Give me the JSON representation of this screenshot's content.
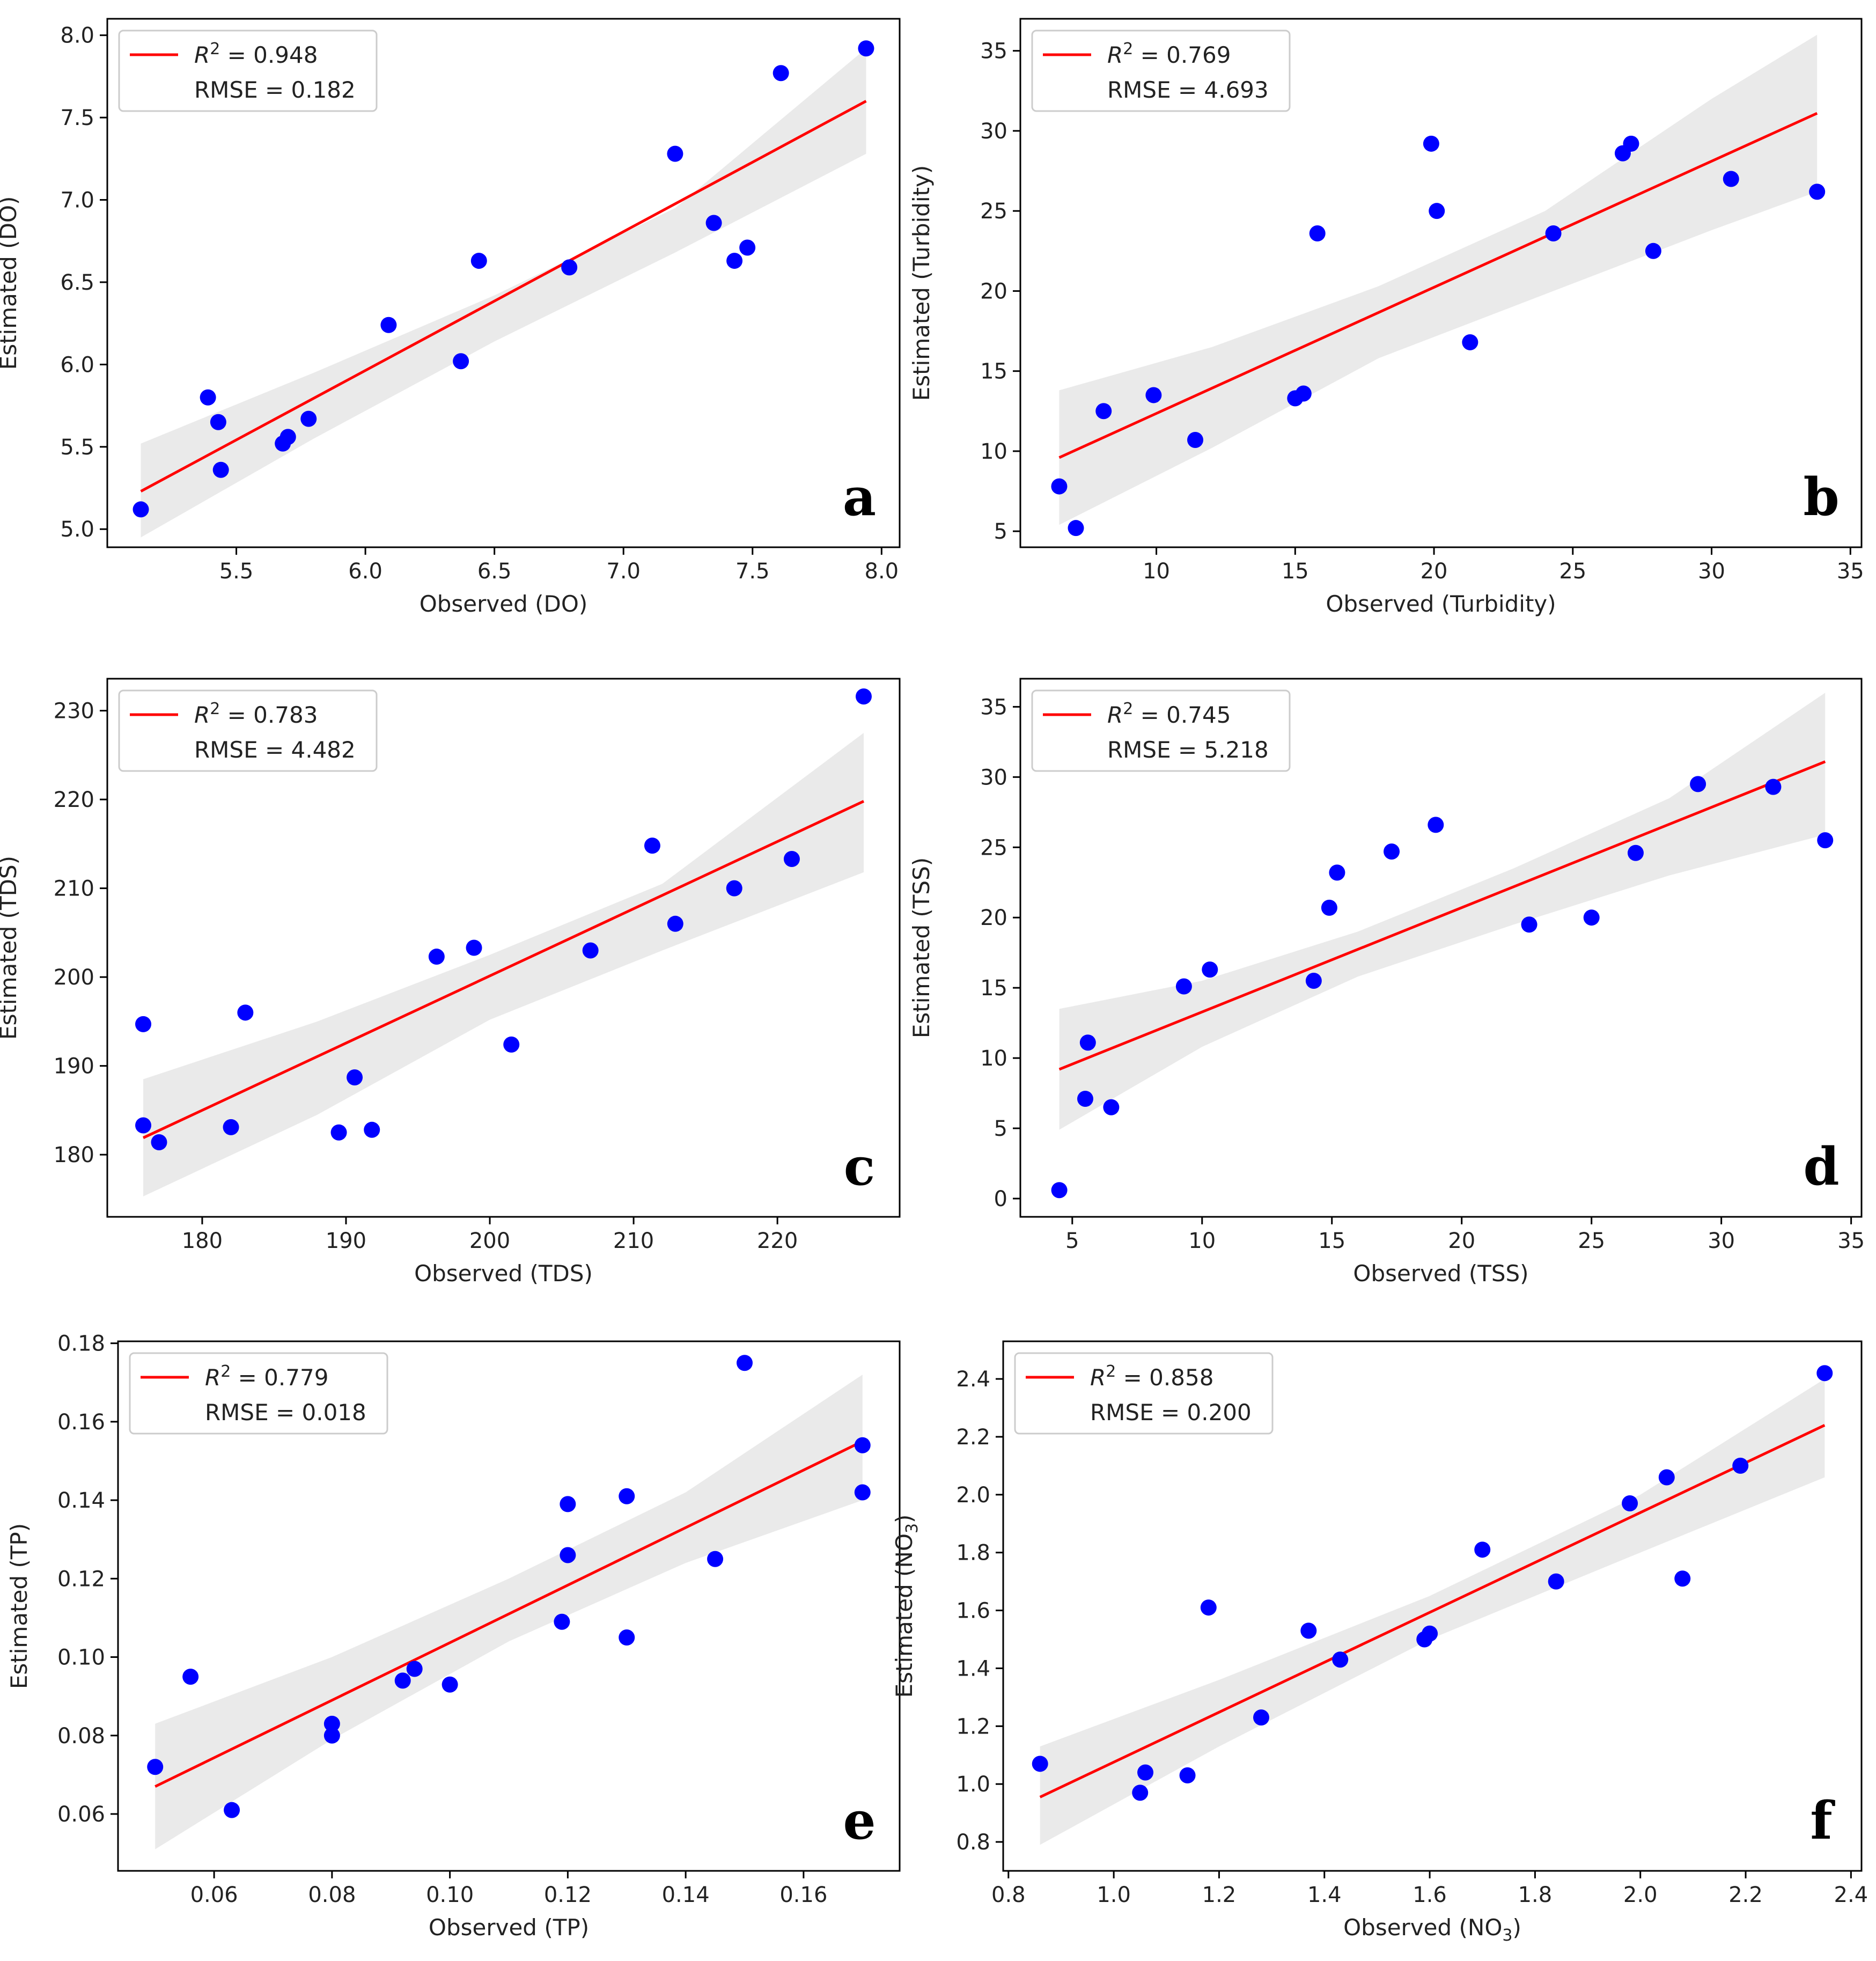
{
  "figure": {
    "style": {
      "point_color": "#0000ff",
      "line_color": "#ff0000",
      "band_color": "#e8e8e8",
      "legend_border_color": "#cccccc"
    }
  },
  "chart_data": [
    {
      "type": "scatter",
      "panel_letter": "a",
      "xlabel": "Observed (DO)",
      "ylabel": "Estimated (DO)",
      "legend": {
        "r2_label": "R",
        "r2_sup": "2",
        "r2_value": " = 0.948",
        "rmse_label": "RMSE = 0.182",
        "position": "upper-left"
      },
      "xlim": [
        5.0,
        8.07
      ],
      "ylim": [
        4.89,
        8.1
      ],
      "xticks": [
        5.5,
        6.0,
        6.5,
        7.0,
        7.5,
        8.0
      ],
      "xtick_labels": [
        "5.5",
        "6.0",
        "6.5",
        "7.0",
        "7.5",
        "8.0"
      ],
      "yticks": [
        5.0,
        5.5,
        6.0,
        6.5,
        7.0,
        7.5,
        8.0
      ],
      "ytick_labels": [
        "5.0",
        "5.5",
        "6.0",
        "6.5",
        "7.0",
        "7.5",
        "8.0"
      ],
      "points": [
        [
          5.13,
          5.12
        ],
        [
          5.39,
          5.8
        ],
        [
          5.43,
          5.65
        ],
        [
          5.44,
          5.36
        ],
        [
          5.68,
          5.52
        ],
        [
          5.7,
          5.56
        ],
        [
          5.78,
          5.67
        ],
        [
          6.09,
          6.24
        ],
        [
          6.37,
          6.02
        ],
        [
          6.44,
          6.63
        ],
        [
          6.79,
          6.59
        ],
        [
          7.2,
          7.28
        ],
        [
          7.35,
          6.86
        ],
        [
          7.43,
          6.63
        ],
        [
          7.48,
          6.71
        ],
        [
          7.61,
          7.77
        ],
        [
          7.94,
          7.92
        ]
      ],
      "fit_line": [
        [
          5.13,
          5.23
        ],
        [
          7.94,
          7.6
        ]
      ],
      "band": {
        "x": [
          5.13,
          5.8,
          6.5,
          7.2,
          7.94
        ],
        "upper": [
          5.52,
          5.95,
          6.42,
          6.95,
          7.92
        ],
        "lower": [
          4.95,
          5.55,
          6.14,
          6.68,
          7.28
        ]
      }
    },
    {
      "type": "scatter",
      "panel_letter": "b",
      "xlabel": "Observed (Turbidity)",
      "ylabel": "Estimated (Turbidity)",
      "legend": {
        "r2_label": "R",
        "r2_sup": "2",
        "r2_value": " = 0.769",
        "rmse_label": "RMSE = 4.693",
        "position": "upper-left"
      },
      "xlim": [
        5.1,
        35.4
      ],
      "ylim": [
        4.0,
        37.0
      ],
      "xticks": [
        10,
        15,
        20,
        25,
        30,
        35
      ],
      "xtick_labels": [
        "10",
        "15",
        "20",
        "25",
        "30",
        "35"
      ],
      "yticks": [
        5,
        10,
        15,
        20,
        25,
        30,
        35
      ],
      "ytick_labels": [
        "5",
        "10",
        "15",
        "20",
        "25",
        "30",
        "35"
      ],
      "points": [
        [
          6.5,
          7.8
        ],
        [
          7.1,
          5.2
        ],
        [
          8.1,
          12.5
        ],
        [
          9.9,
          13.5
        ],
        [
          11.4,
          10.7
        ],
        [
          15.0,
          13.3
        ],
        [
          15.3,
          13.6
        ],
        [
          15.8,
          23.6
        ],
        [
          19.9,
          29.2
        ],
        [
          20.1,
          25.0
        ],
        [
          21.3,
          16.8
        ],
        [
          24.3,
          23.6
        ],
        [
          26.8,
          28.6
        ],
        [
          27.1,
          29.2
        ],
        [
          27.9,
          22.5
        ],
        [
          30.7,
          27.0
        ],
        [
          33.8,
          26.2
        ]
      ],
      "fit_line": [
        [
          6.5,
          9.6
        ],
        [
          33.8,
          31.1
        ]
      ],
      "band": {
        "x": [
          6.5,
          12.0,
          18.0,
          24.0,
          30.0,
          33.8
        ],
        "upper": [
          13.8,
          16.5,
          20.3,
          25.0,
          32.0,
          36.0
        ],
        "lower": [
          5.4,
          10.2,
          15.8,
          19.8,
          23.8,
          26.2
        ]
      }
    },
    {
      "type": "scatter",
      "panel_letter": "c",
      "xlabel": "Observed (TDS)",
      "ylabel": "Estimated (TDS)",
      "legend": {
        "r2_label": "R",
        "r2_sup": "2",
        "r2_value": " = 0.783",
        "rmse_label": "RMSE = 4.482",
        "position": "upper-left"
      },
      "xlim": [
        173.4,
        228.5
      ],
      "ylim": [
        173.0,
        233.6
      ],
      "xticks": [
        180,
        190,
        200,
        210,
        220
      ],
      "xtick_labels": [
        "180",
        "190",
        "200",
        "210",
        "220"
      ],
      "yticks": [
        180,
        190,
        200,
        210,
        220,
        230
      ],
      "ytick_labels": [
        "180",
        "190",
        "200",
        "210",
        "220",
        "230"
      ],
      "points": [
        [
          175.9,
          194.7
        ],
        [
          175.9,
          183.3
        ],
        [
          177.0,
          181.4
        ],
        [
          182.0,
          183.1
        ],
        [
          183.0,
          196.0
        ],
        [
          189.5,
          182.5
        ],
        [
          190.6,
          188.7
        ],
        [
          191.8,
          182.8
        ],
        [
          196.3,
          202.3
        ],
        [
          198.9,
          203.3
        ],
        [
          201.5,
          192.4
        ],
        [
          207.0,
          203.0
        ],
        [
          211.3,
          214.8
        ],
        [
          212.9,
          206.0
        ],
        [
          217.0,
          210.0
        ],
        [
          221.0,
          213.3
        ],
        [
          226.0,
          231.6
        ]
      ],
      "fit_line": [
        [
          175.9,
          181.9
        ],
        [
          226.0,
          219.8
        ]
      ],
      "band": {
        "x": [
          175.9,
          188.0,
          200.0,
          212.0,
          226.0
        ],
        "upper": [
          188.5,
          195.0,
          202.5,
          210.5,
          227.5
        ],
        "lower": [
          175.3,
          184.5,
          195.2,
          203.0,
          211.8
        ]
      }
    },
    {
      "type": "scatter",
      "panel_letter": "d",
      "xlabel": "Observed (TSS)",
      "ylabel": "Estimated (TSS)",
      "legend": {
        "r2_label": "R",
        "r2_sup": "2",
        "r2_value": " = 0.745",
        "rmse_label": "RMSE = 5.218",
        "position": "upper-left"
      },
      "xlim": [
        3.0,
        35.4
      ],
      "ylim": [
        -1.3,
        37.0
      ],
      "xticks": [
        5,
        10,
        15,
        20,
        25,
        30,
        35
      ],
      "xtick_labels": [
        "5",
        "10",
        "15",
        "20",
        "25",
        "30",
        "35"
      ],
      "yticks": [
        0,
        5,
        10,
        15,
        20,
        25,
        30,
        35
      ],
      "ytick_labels": [
        "0",
        "5",
        "10",
        "15",
        "20",
        "25",
        "30",
        "35"
      ],
      "points": [
        [
          4.5,
          0.6
        ],
        [
          5.5,
          7.1
        ],
        [
          5.6,
          11.1
        ],
        [
          6.5,
          6.5
        ],
        [
          9.3,
          15.1
        ],
        [
          10.3,
          16.3
        ],
        [
          14.3,
          15.5
        ],
        [
          14.9,
          20.7
        ],
        [
          15.2,
          23.2
        ],
        [
          17.3,
          24.7
        ],
        [
          19.0,
          26.6
        ],
        [
          22.6,
          19.5
        ],
        [
          25.0,
          20.0
        ],
        [
          26.7,
          24.6
        ],
        [
          29.1,
          29.5
        ],
        [
          32.0,
          29.3
        ],
        [
          34.0,
          25.5
        ]
      ],
      "fit_line": [
        [
          4.5,
          9.2
        ],
        [
          34.0,
          31.1
        ]
      ],
      "band": {
        "x": [
          4.5,
          10.0,
          16.0,
          22.0,
          28.0,
          34.0
        ],
        "upper": [
          13.5,
          15.5,
          19.0,
          23.5,
          28.5,
          36.0
        ],
        "lower": [
          4.9,
          10.8,
          15.8,
          19.5,
          23.0,
          25.9
        ]
      }
    },
    {
      "type": "scatter",
      "panel_letter": "e",
      "xlabel": "Observed (TP)",
      "ylabel": "Estimated (TP)",
      "legend": {
        "r2_label": "R",
        "r2_sup": "2",
        "r2_value": " = 0.779",
        "rmse_label": "RMSE = 0.018",
        "position": "upper-left"
      },
      "xlim": [
        0.0437,
        0.1763
      ],
      "ylim": [
        0.0455,
        0.1805
      ],
      "xticks": [
        0.06,
        0.08,
        0.1,
        0.12,
        0.14,
        0.16
      ],
      "xtick_labels": [
        "0.06",
        "0.08",
        "0.10",
        "0.12",
        "0.14",
        "0.16"
      ],
      "yticks": [
        0.06,
        0.08,
        0.1,
        0.12,
        0.14,
        0.16,
        0.18
      ],
      "ytick_labels": [
        "0.06",
        "0.08",
        "0.10",
        "0.12",
        "0.14",
        "0.16",
        "0.18"
      ],
      "points": [
        [
          0.05,
          0.072
        ],
        [
          0.056,
          0.095
        ],
        [
          0.063,
          0.061
        ],
        [
          0.08,
          0.083
        ],
        [
          0.08,
          0.08
        ],
        [
          0.092,
          0.094
        ],
        [
          0.094,
          0.097
        ],
        [
          0.1,
          0.093
        ],
        [
          0.119,
          0.109
        ],
        [
          0.12,
          0.126
        ],
        [
          0.12,
          0.139
        ],
        [
          0.13,
          0.141
        ],
        [
          0.13,
          0.105
        ],
        [
          0.145,
          0.125
        ],
        [
          0.15,
          0.175
        ],
        [
          0.17,
          0.154
        ],
        [
          0.17,
          0.142
        ]
      ],
      "fit_line": [
        [
          0.05,
          0.067
        ],
        [
          0.17,
          0.155
        ]
      ],
      "band": {
        "x": [
          0.05,
          0.08,
          0.11,
          0.14,
          0.17
        ],
        "upper": [
          0.083,
          0.1,
          0.12,
          0.142,
          0.172
        ],
        "lower": [
          0.051,
          0.079,
          0.104,
          0.124,
          0.14
        ]
      }
    },
    {
      "type": "scatter",
      "panel_letter": "f",
      "xlabel": "Observed (NO",
      "xlabel_sub": "3",
      "xlabel_end": ")",
      "ylabel": "Estimated (NO",
      "ylabel_sub": "3",
      "ylabel_end": ")",
      "legend": {
        "r2_label": "R",
        "r2_sup": "2",
        "r2_value": " = 0.858",
        "rmse_label": "RMSE = 0.200",
        "position": "upper-left"
      },
      "xlim": [
        0.79,
        2.42
      ],
      "ylim": [
        0.7,
        2.53
      ],
      "xticks": [
        0.8,
        1.0,
        1.2,
        1.4,
        1.6,
        1.8,
        2.0,
        2.2,
        2.4
      ],
      "xtick_labels": [
        "0.8",
        "1.0",
        "1.2",
        "1.4",
        "1.6",
        "1.8",
        "2.0",
        "2.2",
        "2.4"
      ],
      "yticks": [
        0.8,
        1.0,
        1.2,
        1.4,
        1.6,
        1.8,
        2.0,
        2.2,
        2.4
      ],
      "ytick_labels": [
        "0.8",
        "1.0",
        "1.2",
        "1.4",
        "1.6",
        "1.8",
        "2.0",
        "2.2",
        "2.4"
      ],
      "points": [
        [
          0.86,
          1.07
        ],
        [
          1.05,
          0.97
        ],
        [
          1.06,
          1.04
        ],
        [
          1.14,
          1.03
        ],
        [
          1.18,
          1.61
        ],
        [
          1.28,
          1.23
        ],
        [
          1.37,
          1.53
        ],
        [
          1.43,
          1.43
        ],
        [
          1.59,
          1.5
        ],
        [
          1.6,
          1.52
        ],
        [
          1.7,
          1.81
        ],
        [
          1.84,
          1.7
        ],
        [
          1.98,
          1.97
        ],
        [
          2.05,
          2.06
        ],
        [
          2.08,
          1.71
        ],
        [
          2.19,
          2.1
        ],
        [
          2.35,
          2.42
        ]
      ],
      "fit_line": [
        [
          0.86,
          0.955
        ],
        [
          2.35,
          2.24
        ]
      ],
      "band": {
        "x": [
          0.86,
          1.2,
          1.6,
          2.0,
          2.35
        ],
        "upper": [
          1.13,
          1.36,
          1.65,
          2.0,
          2.4
        ],
        "lower": [
          0.79,
          1.13,
          1.5,
          1.8,
          2.06
        ]
      }
    }
  ]
}
